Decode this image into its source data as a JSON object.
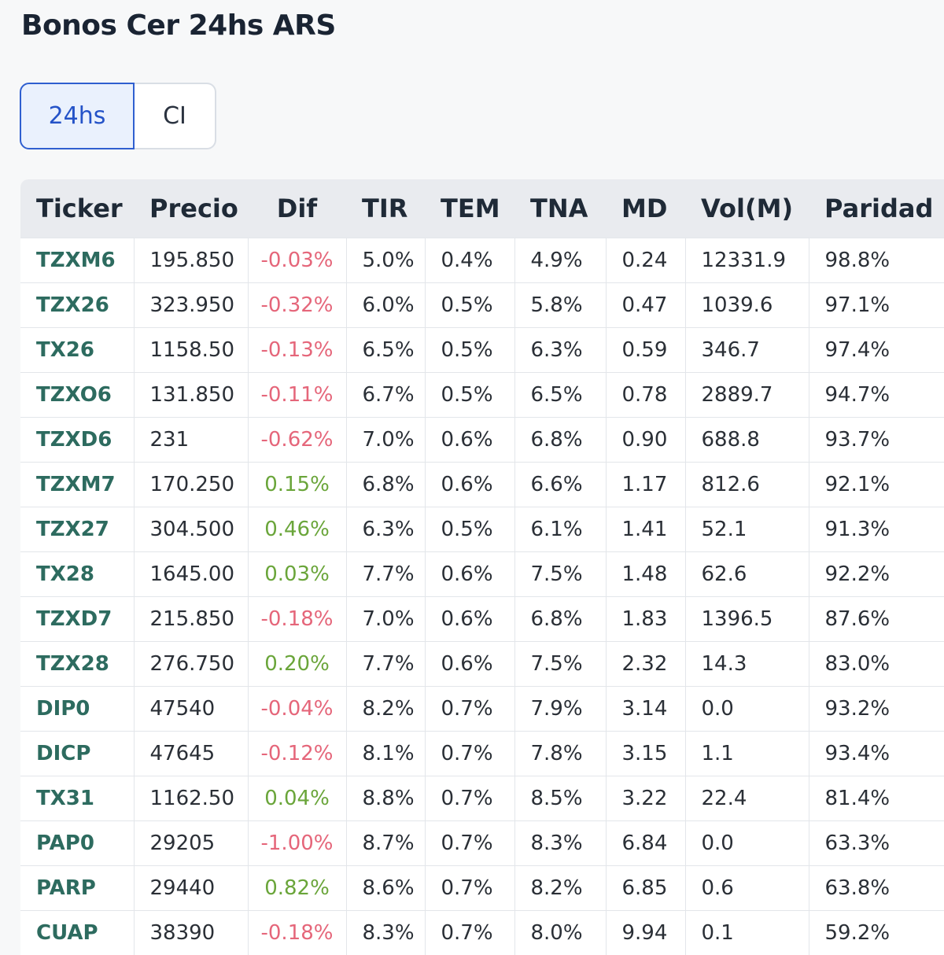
{
  "page": {
    "title": "Bonos Cer 24hs ARS"
  },
  "toggle": {
    "options": [
      {
        "label": "24hs",
        "active": true
      },
      {
        "label": "CI",
        "active": false
      }
    ]
  },
  "colors": {
    "positive": "#6aa53a",
    "negative": "#e5667a",
    "ticker": "#2d6b5f",
    "accent": "#2f5fd0"
  },
  "table": {
    "columns": [
      "Ticker",
      "Precio",
      "Dif",
      "TIR",
      "TEM",
      "TNA",
      "MD",
      "Vol(M)",
      "Paridad"
    ],
    "rows": [
      [
        "TZXM6",
        "195.850",
        "-0.03%",
        "5.0%",
        "0.4%",
        "4.9%",
        "0.24",
        "12331.9",
        "98.8%"
      ],
      [
        "TZX26",
        "323.950",
        "-0.32%",
        "6.0%",
        "0.5%",
        "5.8%",
        "0.47",
        "1039.6",
        "97.1%"
      ],
      [
        "TX26",
        "1158.50",
        "-0.13%",
        "6.5%",
        "0.5%",
        "6.3%",
        "0.59",
        "346.7",
        "97.4%"
      ],
      [
        "TZXO6",
        "131.850",
        "-0.11%",
        "6.7%",
        "0.5%",
        "6.5%",
        "0.78",
        "2889.7",
        "94.7%"
      ],
      [
        "TZXD6",
        "231",
        "-0.62%",
        "7.0%",
        "0.6%",
        "6.8%",
        "0.90",
        "688.8",
        "93.7%"
      ],
      [
        "TZXM7",
        "170.250",
        "0.15%",
        "6.8%",
        "0.6%",
        "6.6%",
        "1.17",
        "812.6",
        "92.1%"
      ],
      [
        "TZX27",
        "304.500",
        "0.46%",
        "6.3%",
        "0.5%",
        "6.1%",
        "1.41",
        "52.1",
        "91.3%"
      ],
      [
        "TX28",
        "1645.00",
        "0.03%",
        "7.7%",
        "0.6%",
        "7.5%",
        "1.48",
        "62.6",
        "92.2%"
      ],
      [
        "TZXD7",
        "215.850",
        "-0.18%",
        "7.0%",
        "0.6%",
        "6.8%",
        "1.83",
        "1396.5",
        "87.6%"
      ],
      [
        "TZX28",
        "276.750",
        "0.20%",
        "7.7%",
        "0.6%",
        "7.5%",
        "2.32",
        "14.3",
        "83.0%"
      ],
      [
        "DIP0",
        "47540",
        "-0.04%",
        "8.2%",
        "0.7%",
        "7.9%",
        "3.14",
        "0.0",
        "93.2%"
      ],
      [
        "DICP",
        "47645",
        "-0.12%",
        "8.1%",
        "0.7%",
        "7.8%",
        "3.15",
        "1.1",
        "93.4%"
      ],
      [
        "TX31",
        "1162.50",
        "0.04%",
        "8.8%",
        "0.7%",
        "8.5%",
        "3.22",
        "22.4",
        "81.4%"
      ],
      [
        "PAP0",
        "29205",
        "-1.00%",
        "8.7%",
        "0.7%",
        "8.3%",
        "6.84",
        "0.0",
        "63.3%"
      ],
      [
        "PARP",
        "29440",
        "0.82%",
        "8.6%",
        "0.7%",
        "8.2%",
        "6.85",
        "0.6",
        "63.8%"
      ],
      [
        "CUAP",
        "38390",
        "-0.18%",
        "8.3%",
        "0.7%",
        "8.0%",
        "9.94",
        "0.1",
        "59.2%"
      ]
    ]
  }
}
